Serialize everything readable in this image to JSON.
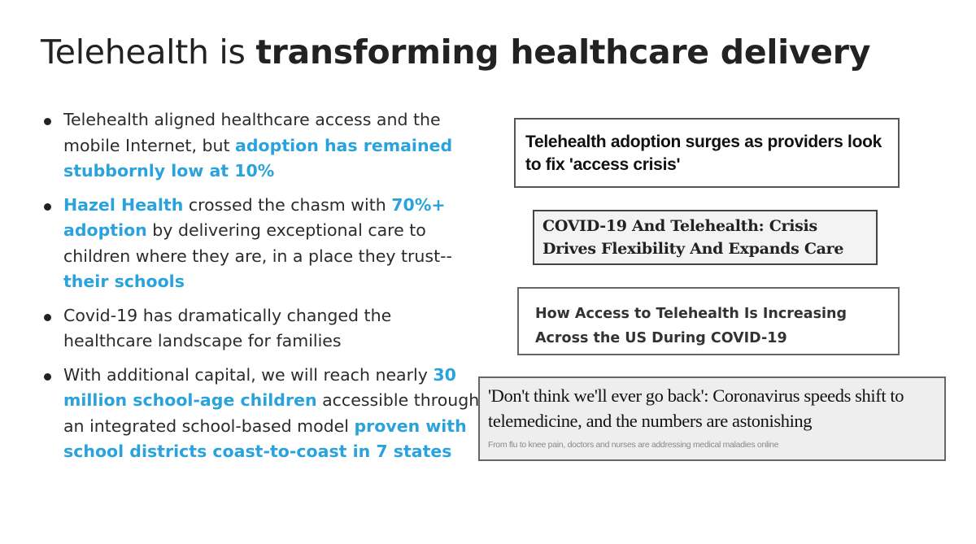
{
  "title": {
    "prefix": "Telehealth is ",
    "emphasis": "transforming healthcare delivery"
  },
  "bullets": [
    {
      "parts": [
        {
          "text": "Telehealth aligned healthcare access and the mobile Internet, but ",
          "highlight": false
        },
        {
          "text": "adoption has remained stubbornly low at 10%",
          "highlight": true
        }
      ]
    },
    {
      "parts": [
        {
          "text": "Hazel Health",
          "highlight": true
        },
        {
          "text": " crossed the chasm with ",
          "highlight": false
        },
        {
          "text": "70%+ adoption",
          "highlight": true
        },
        {
          "text": " by delivering exceptional care to children where they are, in a place they trust-- ",
          "highlight": false
        },
        {
          "text": "their schools",
          "highlight": true
        }
      ]
    },
    {
      "parts": [
        {
          "text": "Covid-19 has dramatically changed the healthcare landscape for families",
          "highlight": false
        }
      ]
    },
    {
      "parts": [
        {
          "text": "With additional capital, we will reach nearly ",
          "highlight": false
        },
        {
          "text": "30 million school-age children",
          "highlight": true
        },
        {
          "text": " accessible through an integrated school-based model ",
          "highlight": false
        },
        {
          "text": "proven with school districts coast-to-coast in 7 states",
          "highlight": true
        }
      ]
    }
  ],
  "headlines": {
    "h1": "Telehealth adoption surges as providers look to fix 'access crisis'",
    "h2": "COVID-19 And Telehealth: Crisis Drives Flexibility And Expands Care",
    "h3": "How Access to Telehealth Is Increasing Across the US During COVID-19",
    "h4": "'Don't think we'll ever go back': Coronavirus speeds shift to telemedicine, and the numbers are astonishing",
    "h4_sub": "From flu to knee pain, doctors and nurses are addressing medical maladies online"
  },
  "colors": {
    "highlight": "#2aa3dc",
    "text": "#2b2b2b"
  }
}
